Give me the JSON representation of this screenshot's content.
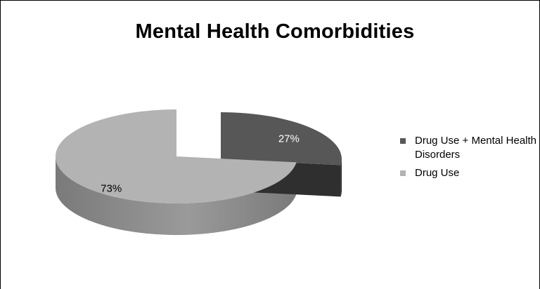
{
  "chart_data": {
    "type": "pie",
    "title": "Mental Health Comorbidities",
    "legend_position": "right",
    "slices": [
      {
        "name": "Drug Use + Mental Health Disorders",
        "value": 27,
        "label": "27%",
        "color": "#575757",
        "side_color": "#2a2a2a",
        "label_color": "#ffffff",
        "exploded": true
      },
      {
        "name": "Drug Use",
        "value": 73,
        "label": "73%",
        "color": "#b3b3b3",
        "side_color": "#7a7a7a",
        "label_color": "#000000",
        "exploded": false
      }
    ],
    "legend": [
      {
        "label": "Drug Use + Mental Health Disorders",
        "color": "#575757"
      },
      {
        "label": "Drug Use",
        "color": "#b3b3b3"
      }
    ]
  }
}
